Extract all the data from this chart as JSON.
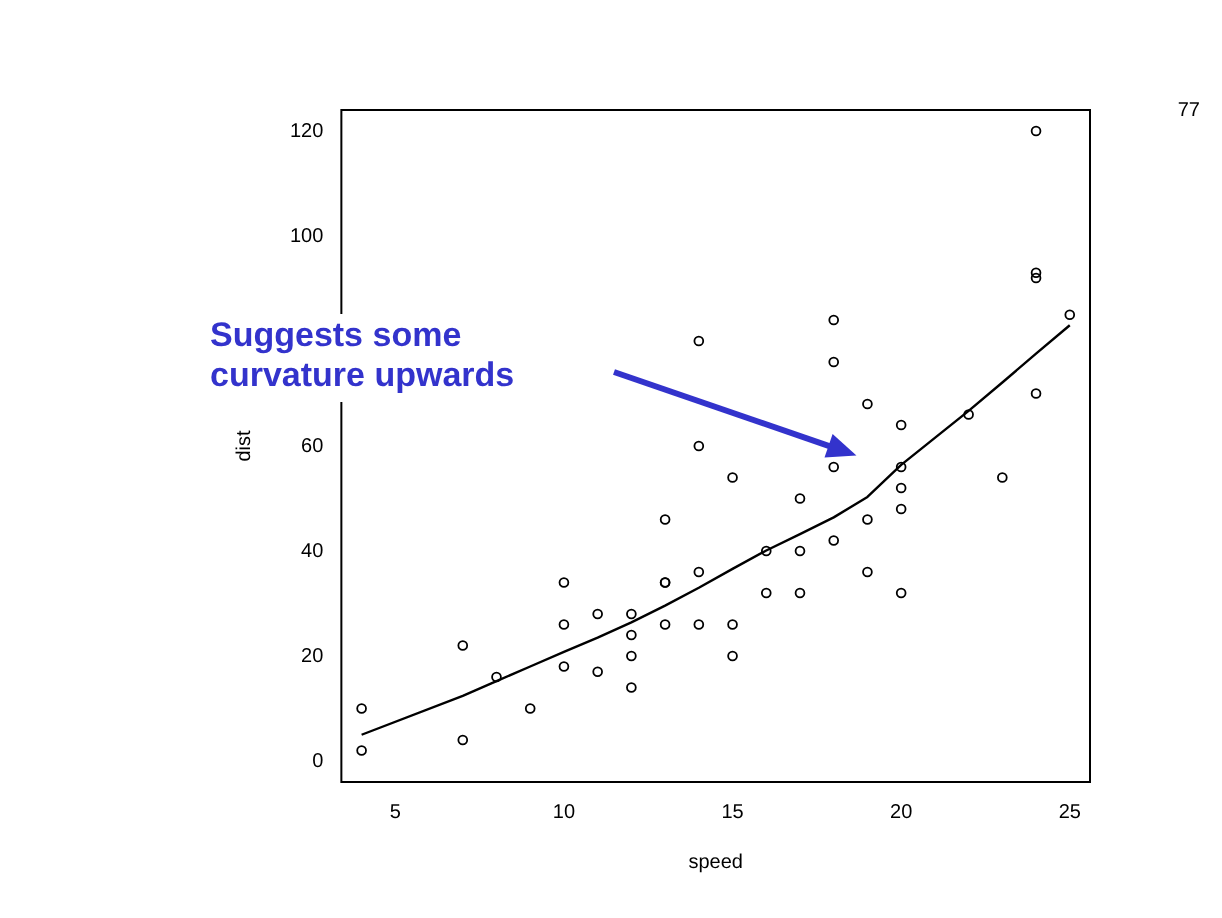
{
  "chart_data": {
    "type": "scatter",
    "xlabel": "speed",
    "ylabel": "dist",
    "xlim": [
      3.4,
      25.6
    ],
    "xticks": [
      5,
      10,
      15,
      20,
      25
    ],
    "ylim": [
      -4,
      124
    ],
    "yticks": [
      0,
      20,
      40,
      60,
      100,
      120
    ],
    "grid": false,
    "legend": false,
    "marker": "circle",
    "annotations": [
      "77",
      "Suggests some curvature upwards"
    ],
    "series": [
      {
        "color": "#000000",
        "x": [
          4,
          4,
          7,
          7,
          8,
          9,
          10,
          10,
          10,
          11,
          11,
          12,
          12,
          12,
          12,
          13,
          13,
          13,
          13,
          14,
          14,
          14,
          14,
          15,
          15,
          15,
          16,
          16,
          17,
          17,
          17,
          18,
          18,
          18,
          18,
          19,
          19,
          19,
          20,
          20,
          20,
          20,
          20,
          22,
          23,
          24,
          24,
          24,
          24,
          25
        ],
        "values": [
          2,
          10,
          4,
          22,
          16,
          10,
          18,
          26,
          34,
          17,
          28,
          14,
          20,
          24,
          28,
          26,
          34,
          34,
          46,
          26,
          36,
          60,
          80,
          20,
          26,
          54,
          32,
          40,
          32,
          40,
          50,
          42,
          56,
          76,
          84,
          36,
          46,
          68,
          32,
          48,
          52,
          56,
          64,
          66,
          54,
          70,
          92,
          93,
          120,
          85
        ]
      },
      {
        "type": "line",
        "color": "#000000",
        "marker": "none",
        "line_style": "solid",
        "x": [
          4,
          7,
          8,
          9,
          10,
          11,
          12,
          13,
          14,
          15,
          16,
          17,
          18,
          19,
          20,
          22,
          23,
          24,
          25
        ],
        "values": [
          5,
          12.4,
          15.2,
          18,
          20.8,
          23.5,
          26.4,
          29.6,
          33,
          36.6,
          40.1,
          43.2,
          46.4,
          50.3,
          56.4,
          66.7,
          72.1,
          77.6,
          83
        ]
      }
    ]
  }
}
